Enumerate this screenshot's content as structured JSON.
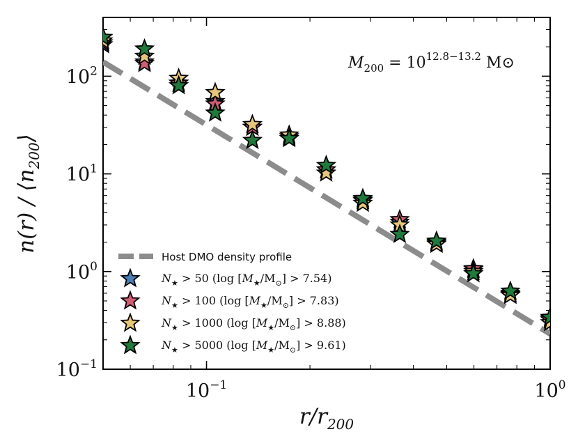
{
  "chart_data": {
    "type": "scatter",
    "title": "",
    "annotation": {
      "text": "M200 = 10^12.8–13.2 M⊙",
      "symbol": "M",
      "subscript": "200",
      "equals": " = 10",
      "exponent": "12.8−13.2",
      "unit": " M⊙"
    },
    "xlabel": "r/r200",
    "ylabel": "n(r) / ⟨n200⟩",
    "xlabel_parts": {
      "main": "r/r",
      "sub": "200"
    },
    "ylabel_parts": {
      "pre": "n(r) / ⟨n",
      "sub": "200",
      "post": "⟩"
    },
    "xscale": "log",
    "yscale": "log",
    "xlim": [
      0.05,
      1.0
    ],
    "ylim": [
      0.1,
      400
    ],
    "x_ticks": [
      {
        "value": 0.1,
        "base": "10",
        "exp": "−1"
      },
      {
        "value": 1.0,
        "base": "10",
        "exp": "0"
      }
    ],
    "y_ticks": [
      {
        "value": 0.1,
        "base": "10",
        "exp": "−1"
      },
      {
        "value": 1,
        "base": "10",
        "exp": "0"
      },
      {
        "value": 10,
        "base": "10",
        "exp": "1"
      },
      {
        "value": 100,
        "base": "10",
        "exp": "2"
      }
    ],
    "legend_position": "lower-left",
    "profile": {
      "name": "Host DMO density profile",
      "color": "#8c8c8c",
      "x": [
        0.05,
        1.0
      ],
      "y": [
        140,
        0.23
      ]
    },
    "x": [
      0.05,
      0.066,
      0.083,
      0.106,
      0.136,
      0.174,
      0.223,
      0.285,
      0.365,
      0.467,
      0.598,
      0.766,
      1.0
    ],
    "series": [
      {
        "name": "N★ > 50 (log[M★/M⊙] > 7.54)",
        "label_num": "50",
        "label_mass": "7.54",
        "color": "#4a7fb5",
        "values": [
          210,
          140,
          85,
          55,
          30,
          24,
          11,
          5.4,
          3.2,
          2.0,
          1.05,
          0.6,
          0.33
        ]
      },
      {
        "name": "N★ > 100 (log[M★/M⊙] > 7.83)",
        "label_num": "100",
        "label_mass": "7.83",
        "color": "#d05f75",
        "values": [
          220,
          135,
          85,
          52,
          30,
          24,
          11,
          5.3,
          3.4,
          1.95,
          1.07,
          0.58,
          0.32
        ]
      },
      {
        "name": "N★ > 1000 (log[M★/M⊙] > 8.88)",
        "label_num": "1000",
        "label_mass": "8.88",
        "color": "#e6c77a",
        "values": [
          230,
          160,
          95,
          68,
          32,
          25,
          10.2,
          5.0,
          3.0,
          1.9,
          1.0,
          0.57,
          0.3
        ]
      },
      {
        "name": "N★ > 5000 (log[M★/M⊙] > 9.61)",
        "label_num": "5000",
        "label_mass": "9.61",
        "color": "#1f7a3c",
        "values": [
          250,
          190,
          80,
          42,
          22,
          23,
          12.2,
          5.6,
          2.4,
          2.05,
          0.95,
          0.63,
          0.34
        ]
      }
    ]
  }
}
